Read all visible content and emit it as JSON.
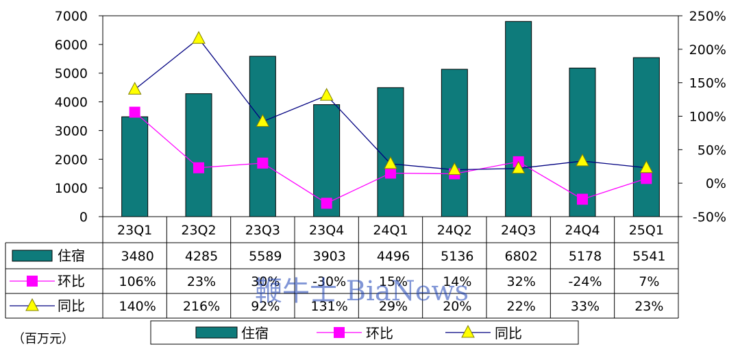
{
  "chart_data": {
    "type": "bar",
    "categories": [
      "23Q1",
      "23Q2",
      "23Q3",
      "23Q4",
      "24Q1",
      "24Q2",
      "24Q3",
      "24Q4",
      "25Q1"
    ],
    "series": [
      {
        "name": "住宿",
        "type": "bar",
        "axis": "left",
        "color": "#0e7b7b",
        "values": [
          3480,
          4285,
          5589,
          3903,
          4496,
          5136,
          6802,
          5178,
          5541
        ],
        "labels": [
          "3480",
          "4285",
          "5589",
          "3903",
          "4496",
          "5136",
          "6802",
          "5178",
          "5541"
        ]
      },
      {
        "name": "环比",
        "type": "line",
        "axis": "right",
        "color": "#ff00ff",
        "marker": "square",
        "values": [
          106,
          23,
          30,
          -30,
          15,
          14,
          32,
          -24,
          7
        ],
        "labels": [
          "106%",
          "23%",
          "30%",
          "-30%",
          "15%",
          "14%",
          "32%",
          "-24%",
          "7%"
        ]
      },
      {
        "name": "同比",
        "type": "line",
        "axis": "right",
        "color": "#000080",
        "marker": "triangle",
        "values": [
          140,
          216,
          92,
          131,
          29,
          20,
          22,
          33,
          23
        ],
        "labels": [
          "140%",
          "216%",
          "92%",
          "131%",
          "29%",
          "20%",
          "22%",
          "33%",
          "23%"
        ]
      }
    ],
    "y_left": {
      "min": 0,
      "max": 7000,
      "ticks": [
        "0",
        "1000",
        "2000",
        "3000",
        "4000",
        "5000",
        "6000",
        "7000"
      ]
    },
    "y_right": {
      "min": -50,
      "max": 250,
      "ticks": [
        "-50%",
        "0%",
        "50%",
        "100%",
        "150%",
        "200%",
        "250%"
      ]
    },
    "unit_label": "（百万元）",
    "legend_placement": "bottom",
    "grid": false
  },
  "watermark": "鞭牛士 BiaNews",
  "colors": {
    "bar": "#0e7b7b",
    "mom": "#ff00ff",
    "yoy": "#000080",
    "marker_yoy_fill": "#ffff00"
  }
}
